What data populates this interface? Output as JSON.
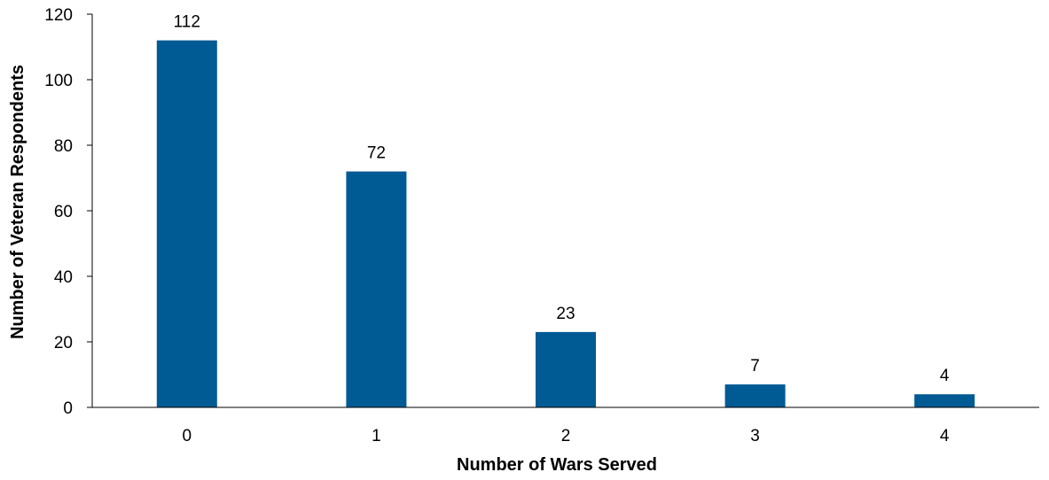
{
  "chart_data": {
    "type": "bar",
    "categories": [
      "0",
      "1",
      "2",
      "3",
      "4"
    ],
    "values": [
      112,
      72,
      23,
      7,
      4
    ],
    "data_labels": [
      "112",
      "72",
      "23",
      "7",
      "4"
    ],
    "title": "",
    "xlabel": "Number of Wars Served",
    "ylabel": "Number of Veteran Respondents",
    "ylim": [
      0,
      120
    ],
    "yticks": [
      0,
      20,
      40,
      60,
      80,
      100,
      120
    ],
    "grid": false,
    "legend": "none",
    "bar_color": "#005A94"
  }
}
